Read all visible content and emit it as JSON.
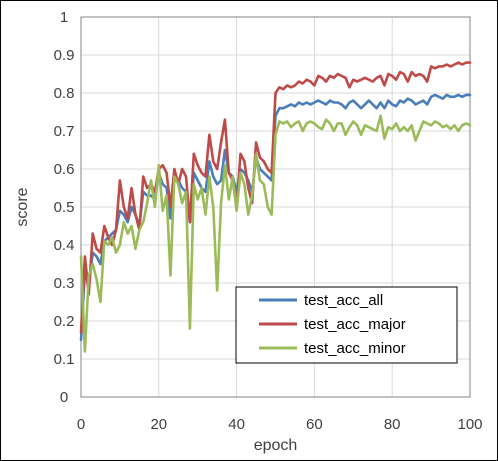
{
  "chart_data": {
    "type": "line",
    "title": "",
    "xlabel": "epoch",
    "ylabel": "score",
    "xlim": [
      0,
      100
    ],
    "ylim": [
      0,
      1
    ],
    "xticks": [
      "0",
      "20",
      "40",
      "60",
      "80",
      "100"
    ],
    "yticks": [
      "0",
      "0.1",
      "0.2",
      "0.3",
      "0.4",
      "0.5",
      "0.6",
      "0.7",
      "0.8",
      "0.9",
      "1"
    ],
    "grid": "horizontal-and-vertical",
    "legend_position": "bottom-right",
    "series": [
      {
        "name": "test_acc_all",
        "color": "#4a7ebb",
        "values": [
          0.15,
          0.33,
          0.29,
          0.38,
          0.37,
          0.35,
          0.41,
          0.42,
          0.43,
          0.44,
          0.49,
          0.48,
          0.46,
          0.5,
          0.48,
          0.45,
          0.54,
          0.53,
          0.53,
          0.52,
          0.59,
          0.56,
          0.55,
          0.47,
          0.58,
          0.57,
          0.55,
          0.54,
          0.46,
          0.59,
          0.57,
          0.55,
          0.54,
          0.62,
          0.58,
          0.56,
          0.57,
          0.65,
          0.59,
          0.58,
          0.54,
          0.6,
          0.59,
          0.57,
          0.54,
          0.63,
          0.6,
          0.59,
          0.58,
          0.57,
          0.74,
          0.76,
          0.76,
          0.765,
          0.77,
          0.765,
          0.775,
          0.77,
          0.775,
          0.77,
          0.775,
          0.78,
          0.775,
          0.77,
          0.78,
          0.775,
          0.775,
          0.77,
          0.76,
          0.775,
          0.78,
          0.77,
          0.76,
          0.77,
          0.78,
          0.77,
          0.76,
          0.775,
          0.76,
          0.78,
          0.77,
          0.765,
          0.78,
          0.775,
          0.785,
          0.78,
          0.77,
          0.775,
          0.78,
          0.77,
          0.79,
          0.795,
          0.79,
          0.785,
          0.795,
          0.79,
          0.79,
          0.795,
          0.79,
          0.795,
          0.795
        ]
      },
      {
        "name": "test_acc_major",
        "color": "#be4b48",
        "values": [
          0.17,
          0.37,
          0.27,
          0.43,
          0.39,
          0.38,
          0.45,
          0.42,
          0.4,
          0.44,
          0.57,
          0.5,
          0.47,
          0.55,
          0.48,
          0.44,
          0.58,
          0.55,
          0.56,
          0.54,
          0.6,
          0.61,
          0.59,
          0.5,
          0.6,
          0.56,
          0.6,
          0.58,
          0.46,
          0.64,
          0.61,
          0.59,
          0.58,
          0.69,
          0.62,
          0.6,
          0.67,
          0.73,
          0.59,
          0.57,
          0.5,
          0.64,
          0.62,
          0.55,
          0.51,
          0.67,
          0.63,
          0.62,
          0.6,
          0.59,
          0.8,
          0.815,
          0.81,
          0.82,
          0.815,
          0.82,
          0.83,
          0.825,
          0.835,
          0.83,
          0.82,
          0.845,
          0.84,
          0.83,
          0.845,
          0.84,
          0.85,
          0.845,
          0.84,
          0.815,
          0.835,
          0.83,
          0.835,
          0.84,
          0.835,
          0.83,
          0.84,
          0.845,
          0.82,
          0.85,
          0.845,
          0.835,
          0.855,
          0.85,
          0.83,
          0.855,
          0.845,
          0.85,
          0.845,
          0.83,
          0.87,
          0.865,
          0.87,
          0.87,
          0.875,
          0.87,
          0.875,
          0.88,
          0.875,
          0.88,
          0.88
        ]
      },
      {
        "name": "test_acc_minor",
        "color": "#9bbb59",
        "values": [
          0.37,
          0.12,
          0.32,
          0.35,
          0.31,
          0.25,
          0.41,
          0.4,
          0.42,
          0.38,
          0.4,
          0.46,
          0.43,
          0.45,
          0.39,
          0.44,
          0.46,
          0.51,
          0.57,
          0.5,
          0.61,
          0.49,
          0.53,
          0.32,
          0.58,
          0.56,
          0.51,
          0.54,
          0.18,
          0.56,
          0.52,
          0.55,
          0.48,
          0.58,
          0.5,
          0.28,
          0.51,
          0.61,
          0.52,
          0.58,
          0.49,
          0.59,
          0.56,
          0.48,
          0.53,
          0.64,
          0.57,
          0.56,
          0.5,
          0.48,
          0.69,
          0.725,
          0.72,
          0.725,
          0.71,
          0.72,
          0.725,
          0.7,
          0.72,
          0.725,
          0.72,
          0.71,
          0.705,
          0.73,
          0.72,
          0.7,
          0.72,
          0.72,
          0.69,
          0.71,
          0.725,
          0.715,
          0.69,
          0.715,
          0.71,
          0.705,
          0.7,
          0.74,
          0.68,
          0.71,
          0.705,
          0.72,
          0.7,
          0.71,
          0.7,
          0.715,
          0.675,
          0.7,
          0.725,
          0.72,
          0.715,
          0.725,
          0.72,
          0.71,
          0.715,
          0.705,
          0.715,
          0.7,
          0.715,
          0.72,
          0.715
        ]
      }
    ]
  }
}
